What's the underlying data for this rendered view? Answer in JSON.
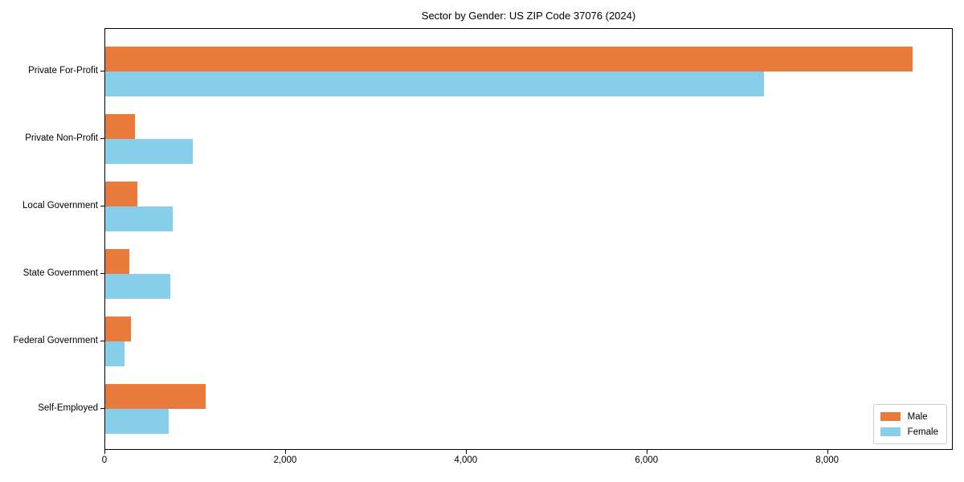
{
  "title": "Sector by Gender: US ZIP Code 37076 (2024)",
  "colors": {
    "male": "#E87A3C",
    "female": "#87CEEB",
    "plot_border": "#000000",
    "legend_border": "#cccccc",
    "background": "#ffffff"
  },
  "legend": {
    "items": [
      {
        "label": "Male",
        "color": "#E87A3C"
      },
      {
        "label": "Female",
        "color": "#87CEEB"
      }
    ]
  },
  "chart_data": {
    "type": "bar",
    "orientation": "horizontal",
    "title": "Sector by Gender: US ZIP Code 37076 (2024)",
    "categories": [
      "Private For-Profit",
      "Private Non-Profit",
      "Local Government",
      "State Government",
      "Federal Government",
      "Self-Employed"
    ],
    "series": [
      {
        "name": "Male",
        "color": "#E87A3C",
        "values": [
          8940,
          330,
          355,
          265,
          285,
          1110
        ]
      },
      {
        "name": "Female",
        "color": "#87CEEB",
        "values": [
          7290,
          970,
          745,
          720,
          215,
          700
        ]
      }
    ],
    "xlabel": "",
    "ylabel": "",
    "xlim": [
      0,
      9390
    ],
    "xticks": [
      0,
      2000,
      4000,
      6000,
      8000
    ],
    "xtick_labels": [
      "0",
      "2,000",
      "4,000",
      "6,000",
      "8,000"
    ],
    "grid": false,
    "legend_position": "lower right"
  }
}
